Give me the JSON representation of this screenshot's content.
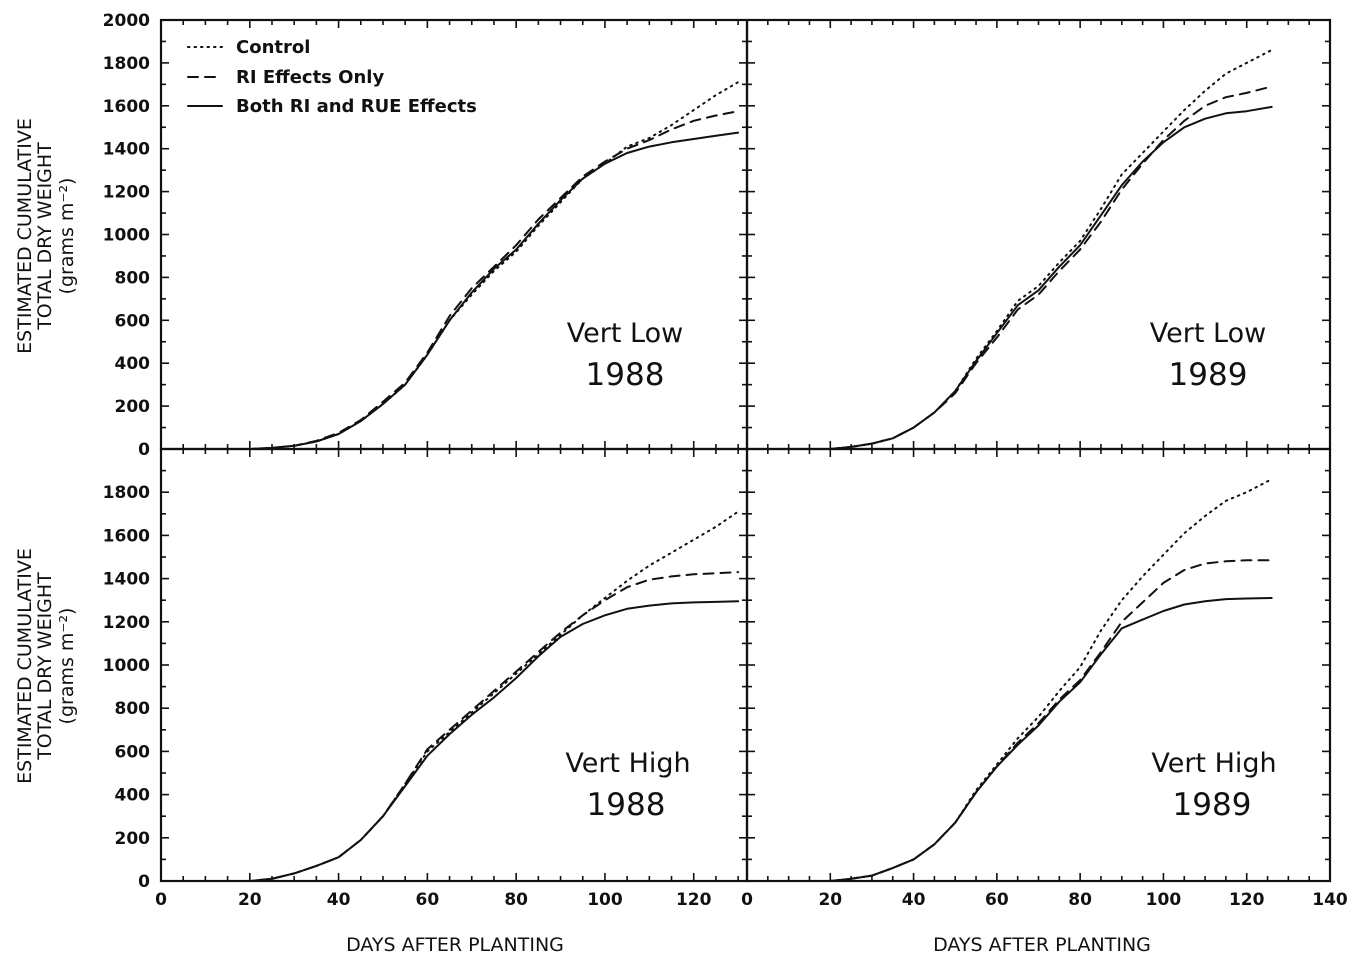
{
  "chart_data": {
    "type": "line",
    "x_axis": {
      "label": "DAYS AFTER PLANTING",
      "left_ticks": [
        "0",
        "20",
        "40",
        "60",
        "80",
        "100",
        "120"
      ],
      "right_ticks": [
        "0",
        "20",
        "40",
        "60",
        "80",
        "100",
        "120",
        "140"
      ]
    },
    "y_axis": {
      "label_line1": "ESTIMATED CUMULATIVE",
      "label_line2": "TOTAL DRY WEIGHT",
      "label_line3": "(grams m⁻²)",
      "top_ticks": [
        "0",
        "200",
        "400",
        "600",
        "800",
        "1000",
        "1200",
        "1400",
        "1600",
        "1800",
        "2000"
      ],
      "bottom_ticks": [
        "0",
        "200",
        "400",
        "600",
        "800",
        "1000",
        "1200",
        "1400",
        "1600",
        "1800"
      ]
    },
    "legend": {
      "position": "top-left of upper-left panel",
      "entries": [
        {
          "label": "Control",
          "style": "dotted"
        },
        {
          "label": "RI Effects Only",
          "style": "dashed"
        },
        {
          "label": "Both RI and RUE Effects",
          "style": "solid"
        }
      ]
    },
    "xlim_left": [
      0,
      132
    ],
    "xlim_right": [
      0,
      140
    ],
    "ylim_top": [
      0,
      2000
    ],
    "ylim_bottom": [
      0,
      2000
    ],
    "grid": false,
    "panels": [
      {
        "position": "top-left",
        "title": "Vert Low",
        "year": "1988",
        "series": [
          {
            "name": "Control",
            "style": "dotted",
            "x": [
              18,
              20,
              25,
              30,
              35,
              40,
              45,
              50,
              55,
              60,
              65,
              70,
              75,
              80,
              85,
              90,
              95,
              100,
              105,
              110,
              115,
              120,
              125,
              130
            ],
            "y": [
              0,
              0,
              5,
              15,
              35,
              70,
              130,
              210,
              300,
              440,
              600,
              720,
              830,
              920,
              1040,
              1150,
              1260,
              1330,
              1410,
              1450,
              1510,
              1580,
              1650,
              1710
            ]
          },
          {
            "name": "RI Effects Only",
            "style": "dashed",
            "x": [
              18,
              20,
              25,
              30,
              35,
              40,
              45,
              50,
              55,
              60,
              65,
              70,
              75,
              80,
              85,
              90,
              95,
              100,
              105,
              110,
              115,
              120,
              125,
              130
            ],
            "y": [
              0,
              0,
              5,
              15,
              38,
              75,
              135,
              220,
              310,
              450,
              620,
              750,
              850,
              950,
              1070,
              1170,
              1270,
              1340,
              1400,
              1440,
              1490,
              1530,
              1555,
              1575
            ]
          },
          {
            "name": "Both RI and RUE Effects",
            "style": "solid",
            "x": [
              18,
              20,
              25,
              30,
              35,
              40,
              45,
              50,
              55,
              60,
              65,
              70,
              75,
              80,
              85,
              90,
              95,
              100,
              105,
              110,
              115,
              120,
              125,
              130
            ],
            "y": [
              0,
              0,
              5,
              15,
              35,
              70,
              130,
              210,
              300,
              440,
              600,
              730,
              840,
              930,
              1050,
              1160,
              1260,
              1330,
              1380,
              1410,
              1430,
              1445,
              1460,
              1475
            ]
          }
        ]
      },
      {
        "position": "top-right",
        "title": "Vert Low",
        "year": "1989",
        "series": [
          {
            "name": "Control",
            "style": "dotted",
            "x": [
              20,
              25,
              30,
              35,
              40,
              45,
              50,
              55,
              60,
              65,
              70,
              75,
              80,
              85,
              90,
              95,
              100,
              105,
              110,
              115,
              120,
              126
            ],
            "y": [
              0,
              10,
              25,
              50,
              100,
              170,
              270,
              420,
              550,
              690,
              760,
              870,
              970,
              1120,
              1280,
              1380,
              1480,
              1580,
              1670,
              1750,
              1800,
              1860
            ]
          },
          {
            "name": "RI Effects Only",
            "style": "dashed",
            "x": [
              20,
              25,
              30,
              35,
              40,
              45,
              50,
              55,
              60,
              65,
              70,
              75,
              80,
              85,
              90,
              95,
              100,
              105,
              110,
              115,
              120,
              126
            ],
            "y": [
              0,
              10,
              25,
              50,
              100,
              170,
              260,
              400,
              520,
              650,
              720,
              830,
              930,
              1060,
              1210,
              1330,
              1440,
              1530,
              1600,
              1640,
              1660,
              1690
            ]
          },
          {
            "name": "Both RI and RUE Effects",
            "style": "solid",
            "x": [
              20,
              25,
              30,
              35,
              40,
              45,
              50,
              55,
              60,
              65,
              70,
              75,
              80,
              85,
              90,
              95,
              100,
              105,
              110,
              115,
              120,
              126
            ],
            "y": [
              0,
              10,
              25,
              50,
              100,
              170,
              270,
              410,
              540,
              670,
              740,
              850,
              950,
              1090,
              1230,
              1340,
              1430,
              1500,
              1540,
              1565,
              1575,
              1595
            ]
          }
        ]
      },
      {
        "position": "bottom-left",
        "title": "Vert High",
        "year": "1988",
        "series": [
          {
            "name": "Control",
            "style": "dotted",
            "x": [
              18,
              20,
              25,
              30,
              35,
              40,
              45,
              50,
              55,
              60,
              65,
              70,
              75,
              80,
              85,
              90,
              95,
              100,
              105,
              110,
              115,
              120,
              125,
              130
            ],
            "y": [
              0,
              0,
              10,
              35,
              70,
              110,
              190,
              300,
              450,
              600,
              690,
              780,
              870,
              960,
              1050,
              1140,
              1230,
              1310,
              1390,
              1460,
              1520,
              1580,
              1640,
              1710
            ]
          },
          {
            "name": "RI Effects Only",
            "style": "dashed",
            "x": [
              18,
              20,
              25,
              30,
              35,
              40,
              45,
              50,
              55,
              60,
              65,
              70,
              75,
              80,
              85,
              90,
              95,
              100,
              105,
              110,
              115,
              120,
              125,
              130
            ],
            "y": [
              0,
              0,
              10,
              35,
              70,
              110,
              190,
              300,
              450,
              610,
              700,
              790,
              880,
              970,
              1060,
              1150,
              1230,
              1300,
              1360,
              1395,
              1410,
              1420,
              1425,
              1430
            ]
          },
          {
            "name": "Both RI and RUE Effects",
            "style": "solid",
            "x": [
              18,
              20,
              25,
              30,
              35,
              40,
              45,
              50,
              55,
              60,
              65,
              70,
              75,
              80,
              85,
              90,
              95,
              100,
              105,
              110,
              115,
              120,
              125,
              130
            ],
            "y": [
              0,
              0,
              10,
              35,
              70,
              110,
              190,
              300,
              440,
              580,
              680,
              770,
              850,
              940,
              1040,
              1130,
              1190,
              1230,
              1260,
              1275,
              1285,
              1290,
              1292,
              1295
            ]
          }
        ]
      },
      {
        "position": "bottom-right",
        "title": "Vert High",
        "year": "1989",
        "series": [
          {
            "name": "Control",
            "style": "dotted",
            "x": [
              20,
              25,
              30,
              35,
              40,
              45,
              50,
              55,
              60,
              65,
              70,
              75,
              80,
              85,
              90,
              95,
              100,
              105,
              110,
              115,
              120,
              126
            ],
            "y": [
              0,
              10,
              25,
              60,
              100,
              170,
              270,
              420,
              540,
              660,
              760,
              880,
              990,
              1160,
              1300,
              1410,
              1510,
              1610,
              1690,
              1760,
              1800,
              1860
            ]
          },
          {
            "name": "RI Effects Only",
            "style": "dashed",
            "x": [
              20,
              25,
              30,
              35,
              40,
              45,
              50,
              55,
              60,
              65,
              70,
              75,
              80,
              85,
              90,
              95,
              100,
              105,
              110,
              115,
              120,
              126
            ],
            "y": [
              0,
              10,
              25,
              60,
              100,
              170,
              270,
              410,
              530,
              640,
              730,
              840,
              930,
              1060,
              1200,
              1290,
              1380,
              1440,
              1470,
              1480,
              1485,
              1485
            ]
          },
          {
            "name": "Both RI and RUE Effects",
            "style": "solid",
            "x": [
              20,
              25,
              30,
              35,
              40,
              45,
              50,
              55,
              60,
              65,
              70,
              75,
              80,
              85,
              90,
              95,
              100,
              105,
              110,
              115,
              120,
              126
            ],
            "y": [
              0,
              10,
              25,
              60,
              100,
              170,
              270,
              410,
              530,
              630,
              720,
              830,
              920,
              1050,
              1170,
              1210,
              1250,
              1280,
              1295,
              1305,
              1308,
              1310
            ]
          }
        ]
      }
    ]
  }
}
